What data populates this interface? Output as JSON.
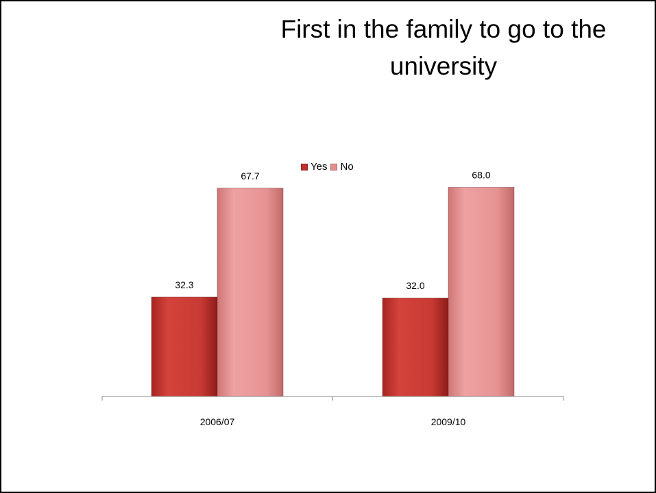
{
  "chart_data": {
    "type": "bar",
    "title": "First in the family to go to the university",
    "categories": [
      "2006/07",
      "2009/10"
    ],
    "series": [
      {
        "name": "Yes",
        "values": [
          32.3,
          32.0
        ],
        "color": "#c0302c",
        "label_text": [
          "32.3",
          "32.0"
        ]
      },
      {
        "name": "No",
        "values": [
          67.7,
          68.0
        ],
        "color": "#e58e8e",
        "label_text": [
          "67.7",
          "68.0"
        ]
      }
    ],
    "ylim": [
      0,
      75
    ],
    "xlabel": "",
    "ylabel": "",
    "legend_position": "top",
    "grid": false
  }
}
